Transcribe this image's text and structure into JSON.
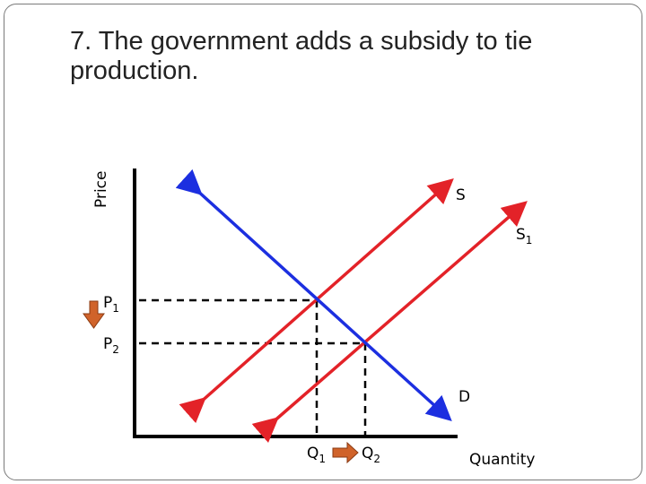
{
  "title": "7. The government adds a subsidy to tie production.",
  "axes": {
    "y_label": "Price",
    "x_label": "Quantity"
  },
  "curves": {
    "supply_original": {
      "label": "S",
      "color": "#e32228"
    },
    "supply_new": {
      "label": "S",
      "subscript": "1",
      "color": "#e32228"
    },
    "demand": {
      "label": "D",
      "color": "#1c2fe0"
    }
  },
  "prices": {
    "p1": {
      "label": "P",
      "subscript": "1"
    },
    "p2": {
      "label": "P",
      "subscript": "2"
    }
  },
  "quantities": {
    "q1": {
      "label": "Q",
      "subscript": "1"
    },
    "q2": {
      "label": "Q",
      "subscript": "2"
    }
  },
  "indicators": {
    "price_change": "down-arrow-icon",
    "quantity_change": "right-arrow-icon",
    "arrow_color": "#d0632a"
  }
}
